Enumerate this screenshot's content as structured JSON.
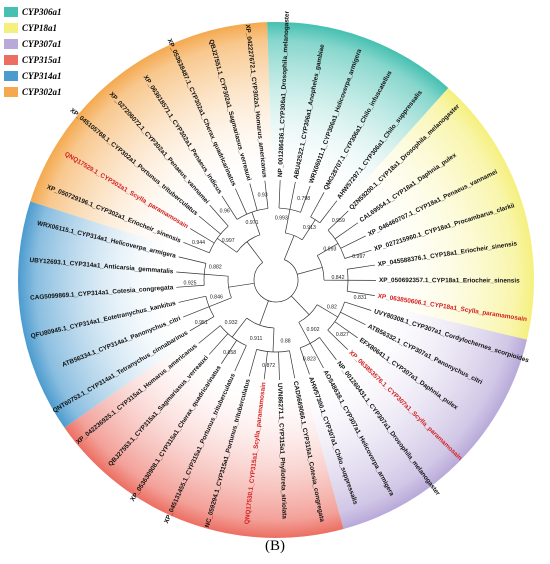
{
  "legend": [
    {
      "label": "CYP306a1",
      "color": "#45c0b1"
    },
    {
      "label": "CYP18a1",
      "color": "#f5f07e"
    },
    {
      "label": "CYP307a1",
      "color": "#b8a9d9"
    },
    {
      "label": "CYP315a1",
      "color": "#ec6e62"
    },
    {
      "label": "CYP314a1",
      "color": "#4b9bcf"
    },
    {
      "label": "CYP302a1",
      "color": "#f4a94f"
    }
  ],
  "panel_label": "(B)",
  "highlight_color": "#d42020",
  "label_color": "#111111",
  "leaves": [
    {
      "label": "NP_001286436.1_CYP306a1_Drosophila_melanogaster",
      "group": "CYP306a1",
      "highlight": false
    },
    {
      "label": "ABU42522.1_CYP306a1_Anopheles_gambiae",
      "group": "CYP306a1",
      "highlight": false
    },
    {
      "label": "WRX06011.1_CYP306a1_Helicoverpa_armigera",
      "group": "CYP306a1",
      "highlight": false
    },
    {
      "label": "QMG28707.1_CYP306a1_Chilo_infuscatellus",
      "group": "CYP306a1",
      "highlight": false
    },
    {
      "label": "AHW57297.1_CYP306a1_Chilo_suppressalis",
      "group": "CYP306a1",
      "highlight": false
    },
    {
      "label": "QZN59200.1_CYP18a1_Drosophila_melanogaster",
      "group": "CYP18a1",
      "highlight": false
    },
    {
      "label": "CAL69554.1_CYP18a1_Daphnia_pulex",
      "group": "CYP18a1",
      "highlight": false
    },
    {
      "label": "XP_046460707.1_CYP18a1_Penaeus_vannamei",
      "group": "CYP18a1",
      "highlight": false
    },
    {
      "label": "XP_027215960.1_CYP18a1_Procambarus_clarkii",
      "group": "CYP18a1",
      "highlight": false
    },
    {
      "label": "XP_045588376.1_CYP18a1_Eriocheir_sinensis",
      "group": "CYP18a1",
      "highlight": false
    },
    {
      "label": "XP_050692357.1_CYP18a1_Eriocheir_sinensis",
      "group": "CYP18a1",
      "highlight": false
    },
    {
      "label": "XP_063850606.1_CYP18a1_Scylla_paramamosain",
      "group": "CYP18a1",
      "highlight": true
    },
    {
      "label": "UVY80308.1_CYP307a1_Cordylochernes_scorpioides",
      "group": "CYP307a1",
      "highlight": false
    },
    {
      "label": "ATB56332.1_CYP307a1_Panonychus_citri",
      "group": "CYP307a1",
      "highlight": false
    },
    {
      "label": "EFX80641.1_CYP307a1_Daphnia_pulex",
      "group": "CYP307a1",
      "highlight": false
    },
    {
      "label": "XP_063853576.1_CYP307a1_Scylla_paramamosain",
      "group": "CYP307a1",
      "highlight": true
    },
    {
      "label": "NP_001260431.1_CYP307a1_Drosophila_melanogaster",
      "group": "CYP307a1",
      "highlight": false
    },
    {
      "label": "AOS48638.1_CYP307a1_Helicoverpa_armigera",
      "group": "CYP307a1",
      "highlight": false
    },
    {
      "label": "AHW57300.1_CYP307a1_Chilo_suppressalis",
      "group": "CYP307a1",
      "highlight": false
    },
    {
      "label": "CAD5669066.1_CYP315a1_Cotesia_congregata",
      "group": "CYP315a1",
      "highlight": false
    },
    {
      "label": "UVN86271.1_CYP315a1_Phyllotreta_striolata",
      "group": "CYP315a1",
      "highlight": false
    },
    {
      "label": "QNQ17530.1_CYP315a1_Scylla_paramamosain",
      "group": "CYP315a1",
      "highlight": true
    },
    {
      "label": "NC_059294.1_CYP315a1_Portunus_trituberculatus",
      "group": "CYP315a1",
      "highlight": false
    },
    {
      "label": "XP_045131455.1_CYP315a1_Portunus_trituberculatus",
      "group": "CYP315a1",
      "highlight": false
    },
    {
      "label": "XP_053630908.1_CYP315a1_Cherax_quadricarinatus",
      "group": "CYP315a1",
      "highlight": false
    },
    {
      "label": "QBJ27553.1_CYP315a1_Sagmariasus_verreauxi",
      "group": "CYP315a1",
      "highlight": false
    },
    {
      "label": "XP_042236925.1_CYP315a1_Homarus_americanus",
      "group": "CYP315a1",
      "highlight": false
    },
    {
      "label": "QNT60753.1_CYP314a1_Tetranychus_cinnabarinus",
      "group": "CYP314a1",
      "highlight": false
    },
    {
      "label": "ATB56334.1_CYP314a1_Panonychus_citri",
      "group": "CYP314a1",
      "highlight": false
    },
    {
      "label": "QFU80945.1_CYP314a1_Eotetranychus_kankitus",
      "group": "CYP314a1",
      "highlight": false
    },
    {
      "label": "CAG5099869.1_CYP314a1_Cotesia_congregata",
      "group": "CYP314a1",
      "highlight": false
    },
    {
      "label": "UBY12693.1_CYP314a1_Anticarsia_gemmatalis",
      "group": "CYP314a1",
      "highlight": false
    },
    {
      "label": "WRX06115.1_CYP314a1_Helicoverpa_armigera",
      "group": "CYP314a1",
      "highlight": false
    },
    {
      "label": "XP_050729196.1_CYP302a1_Eriocheir_sinensis",
      "group": "CYP302a1",
      "highlight": false
    },
    {
      "label": "QNQ17529.1_CYP302a1_Scylla_paramamosain",
      "group": "CYP302a1",
      "highlight": true
    },
    {
      "label": "XP_045105768.1_CYP302a1_Portunus_trituberculatus",
      "group": "CYP302a1",
      "highlight": false
    },
    {
      "label": "XP_027206072.1_CYP302a1_Penaeus_vannamei",
      "group": "CYP302a1",
      "highlight": false
    },
    {
      "label": "XP_063618571.1_CYP302a1_Penaeus_indicus",
      "group": "CYP302a1",
      "highlight": false
    },
    {
      "label": "XP_053638487.1_CYP302a1_Cherax_quadricarinatus",
      "group": "CYP302a1",
      "highlight": false
    },
    {
      "label": "QBJ27551.1_CYP302a1_Sagmariasus_verreauxi",
      "group": "CYP302a1",
      "highlight": false
    },
    {
      "label": "XP_042227672.1_CYP302a1_Homarus_americanus",
      "group": "CYP302a1",
      "highlight": false
    }
  ],
  "bootstrap_values": [
    "0.993",
    "0.798",
    "0.913",
    "0.959",
    "0.993",
    "0.997",
    "0.842",
    "0.831",
    "0.82",
    "0.827",
    "0.902",
    "0.823",
    "0.88",
    "0.872",
    "0.911",
    "0.858",
    "0.932",
    "0.951",
    "0.846",
    "0.925",
    "0.882",
    "0.944",
    "0.997",
    "0.96",
    "0.971",
    "0.93"
  ]
}
